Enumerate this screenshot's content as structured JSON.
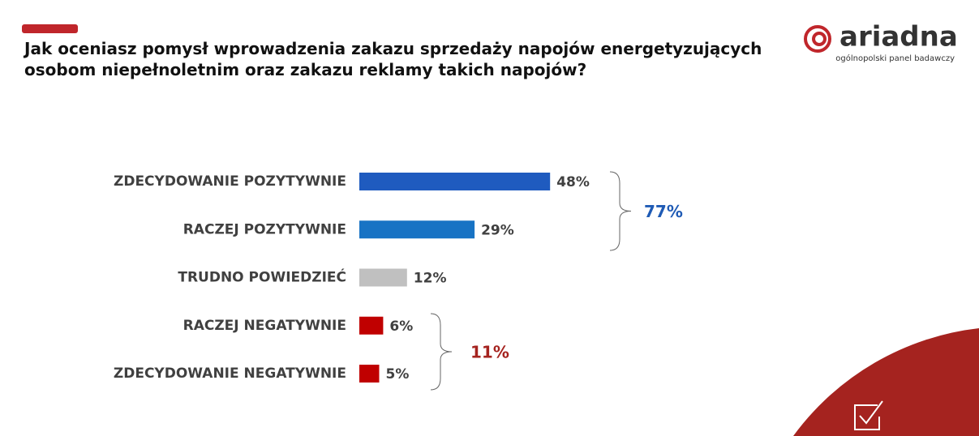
{
  "chart_data": {
    "type": "hbar",
    "title": "Jak oceniasz pomysł wprowadzenia zakazu sprzedaży napojów energetyzujących osobom niepełnoletnim oraz zakazu reklamy takich napojów?",
    "categories": [
      "ZDECYDOWANIE POZYTYWNIE",
      "RACZEJ POZYTYWNIE",
      "TRUDNO POWIEDZIEĆ",
      "RACZEJ NEGATYWNIE",
      "ZDECYDOWANIE NEGATYWNIE"
    ],
    "values": [
      48,
      29,
      12,
      6,
      5
    ],
    "value_labels": [
      "48%",
      "29%",
      "12%",
      "6%",
      "5%"
    ],
    "colors": [
      "#1f5bbf",
      "#1873c4",
      "#c0c0c0",
      "#c00000",
      "#c00000"
    ],
    "xlim": [
      0,
      100
    ],
    "annotations": [
      {
        "text": "77%",
        "color": "#1f5bb5"
      },
      {
        "text": "11%",
        "color": "#a5231f"
      }
    ]
  },
  "logo": {
    "name": "ariadna",
    "tagline": "ogólnopolski panel badawczy"
  }
}
